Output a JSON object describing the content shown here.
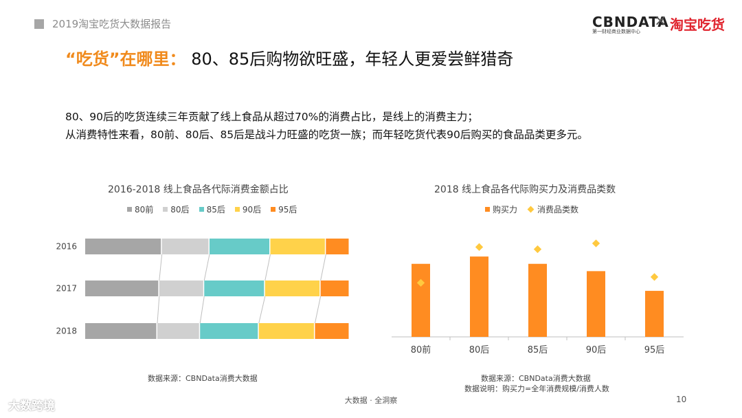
{
  "header": {
    "report_title": "2019淘宝吃货大数据报告",
    "brand": "CBNDATA",
    "brand_sub": "第一财经商业数据中心",
    "brand_x": "×",
    "brand2": "淘宝吃货"
  },
  "headline": {
    "highlight": "“吃货”在哪里：",
    "text": "80、85后购物欲旺盛，年轻人更爱尝鲜猎奇"
  },
  "body": {
    "line1": "80、90后的吃货连续三年贡献了线上食品从超过70%的消费占比，是线上的消费主力；",
    "line2": "从消费特性来看，80前、80后、85后是战斗力旺盛的吃货一族；而年轻吃货代表90后购买的食品品类更多元。"
  },
  "colors": {
    "80前": "#a6a6a6",
    "80后": "#d0d0d0",
    "85后": "#67cbc8",
    "90后": "#ffd24a",
    "95后": "#ff8c21",
    "bar": "#ff8c21",
    "diamond": "#ffc93f",
    "accent": "#f08a1c"
  },
  "chart_data": [
    {
      "type": "bar",
      "orientation": "horizontal-stacked-100%",
      "title": "2016-2018 线上食品各代际消费金额占比",
      "categories": [
        "2016",
        "2017",
        "2018"
      ],
      "series": [
        {
          "name": "80前",
          "values": [
            29,
            28,
            27
          ]
        },
        {
          "name": "80后",
          "values": [
            18,
            17,
            16
          ]
        },
        {
          "name": "85后",
          "values": [
            23,
            23,
            22
          ]
        },
        {
          "name": "90后",
          "values": [
            21,
            21,
            21
          ]
        },
        {
          "name": "95后",
          "values": [
            9,
            11,
            13
          ]
        }
      ],
      "xlim": [
        0,
        100
      ],
      "legend": "top",
      "source": "数据来源：CBNData消费大数据"
    },
    {
      "type": "bar",
      "title": "2018 线上食品各代际购买力及消费品类数",
      "categories": [
        "80前",
        "80后",
        "85后",
        "90后",
        "95后"
      ],
      "series": [
        {
          "name": "购买力",
          "kind": "bar",
          "values": [
            100,
            110,
            100,
            90,
            63
          ]
        },
        {
          "name": "消费品类数",
          "kind": "diamond",
          "values": [
            74,
            123,
            120,
            128,
            82
          ]
        }
      ],
      "ylim": [
        0,
        160
      ],
      "legend": "top",
      "source": "数据来源：CBNData消费大数据",
      "note": "数据说明：购买力=全年消费规模/消费人数"
    }
  ],
  "footer": {
    "center": "大数据 · 全洞察",
    "page": "10",
    "corner": "大数跨境"
  }
}
